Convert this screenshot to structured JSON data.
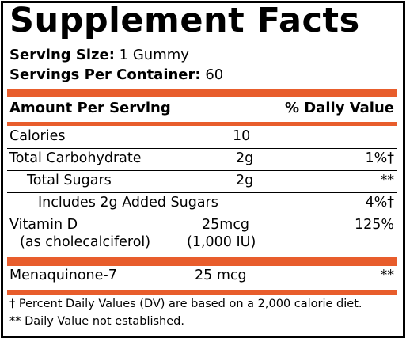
{
  "colors": {
    "accent": "#e85d2c"
  },
  "title": "Supplement Facts",
  "serving": {
    "size_label": "Serving Size:",
    "size_value": "1 Gummy",
    "per_container_label": "Servings Per Container:",
    "per_container_value": "60"
  },
  "header": {
    "amount": "Amount Per Serving",
    "dv": "% Daily Value"
  },
  "rows": [
    {
      "name": "Calories",
      "amount": "10",
      "dv": ""
    },
    {
      "name": "Total Carbohydrate",
      "amount": "2g",
      "dv": "1%†"
    },
    {
      "name": "Total Sugars",
      "amount": "2g",
      "dv": "**"
    },
    {
      "name": "Includes 2g Added Sugars",
      "amount": "",
      "dv": "4%†"
    },
    {
      "name": "Vitamin D",
      "sub": "(as cholecalciferol)",
      "amount": "25mcg",
      "amount_sub": "(1,000 IU)",
      "dv": "125%"
    },
    {
      "name": "Menaquinone-7",
      "amount": "25 mcg",
      "dv": "**"
    }
  ],
  "footnotes": [
    "† Percent Daily Values (DV) are based on a 2,000 calorie diet.",
    "** Daily Value not established."
  ]
}
